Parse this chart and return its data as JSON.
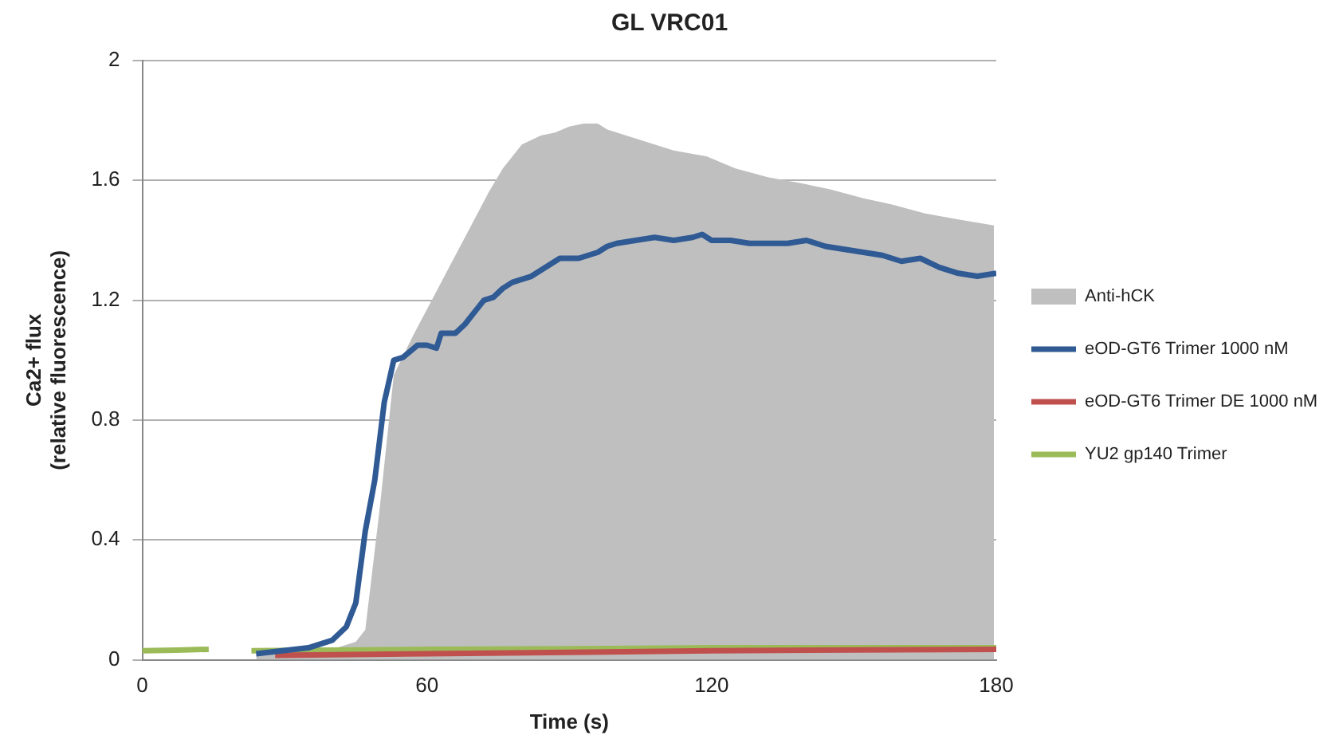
{
  "chart_data": {
    "type": "line",
    "title": "GL VRC01",
    "xlabel": "Time (s)",
    "ylabel": "Ca2+ flux\n(relative fluorescence)",
    "xlim": [
      0,
      180
    ],
    "xticks": [
      0,
      60,
      120,
      180
    ],
    "ylim": [
      0,
      2
    ],
    "yticks": [
      0,
      0.4,
      0.8,
      1.2,
      1.6,
      2
    ],
    "grid": "y",
    "legend": "right",
    "marker": "none",
    "line_style": "solid",
    "series": [
      {
        "name": "Anti-hCK",
        "type": "area",
        "color": "#bfbfbf",
        "x": [
          24,
          35,
          41,
          45,
          47,
          50,
          53,
          57,
          61,
          65,
          69,
          73,
          76,
          80,
          84,
          87,
          90,
          93,
          96,
          98,
          102,
          106,
          112,
          119,
          125,
          132,
          139,
          145,
          152,
          158,
          165,
          172,
          179.5
        ],
        "values": [
          0.02,
          0.03,
          0.04,
          0.06,
          0.1,
          0.5,
          0.95,
          1.08,
          1.2,
          1.32,
          1.44,
          1.56,
          1.64,
          1.72,
          1.75,
          1.76,
          1.78,
          1.79,
          1.79,
          1.77,
          1.75,
          1.73,
          1.7,
          1.68,
          1.64,
          1.61,
          1.59,
          1.57,
          1.54,
          1.52,
          1.49,
          1.47,
          1.45
        ]
      },
      {
        "name": "eOD-GT6 Trimer 1000 nM",
        "color": "#2f5a94",
        "x": [
          24,
          35,
          40,
          43,
          45,
          47,
          49,
          51,
          53,
          55,
          58,
          60,
          62,
          63,
          66,
          68,
          70,
          72,
          74,
          76,
          78,
          80,
          82,
          84,
          86,
          88,
          90,
          92,
          94,
          96,
          98,
          100,
          104,
          108,
          112,
          116,
          118,
          120,
          124,
          128,
          132,
          136,
          140,
          144,
          148,
          152,
          156,
          160,
          164,
          168,
          172,
          176,
          180
        ],
        "values": [
          0.02,
          0.04,
          0.065,
          0.11,
          0.19,
          0.43,
          0.6,
          0.86,
          1.0,
          1.01,
          1.05,
          1.05,
          1.04,
          1.09,
          1.09,
          1.12,
          1.16,
          1.2,
          1.21,
          1.24,
          1.26,
          1.27,
          1.28,
          1.3,
          1.32,
          1.34,
          1.34,
          1.34,
          1.35,
          1.36,
          1.38,
          1.39,
          1.4,
          1.41,
          1.4,
          1.41,
          1.42,
          1.4,
          1.4,
          1.39,
          1.39,
          1.39,
          1.4,
          1.38,
          1.37,
          1.36,
          1.35,
          1.33,
          1.34,
          1.31,
          1.29,
          1.28,
          1.29
        ]
      },
      {
        "name": "eOD-GT6 Trimer DE 1000 nM",
        "color": "#c0504d",
        "x": [
          28,
          60,
          90,
          120,
          150,
          180
        ],
        "values": [
          0.015,
          0.02,
          0.025,
          0.03,
          0.033,
          0.035
        ]
      },
      {
        "name": "YU2 gp140 Trimer",
        "color": "#9bbb59",
        "x": [
          0,
          7,
          14,
          18,
          23,
          60,
          90,
          120,
          150,
          180
        ],
        "values": [
          0.03,
          0.032,
          0.035,
          null,
          0.03,
          0.035,
          0.037,
          0.04,
          0.04,
          0.04
        ]
      }
    ]
  }
}
